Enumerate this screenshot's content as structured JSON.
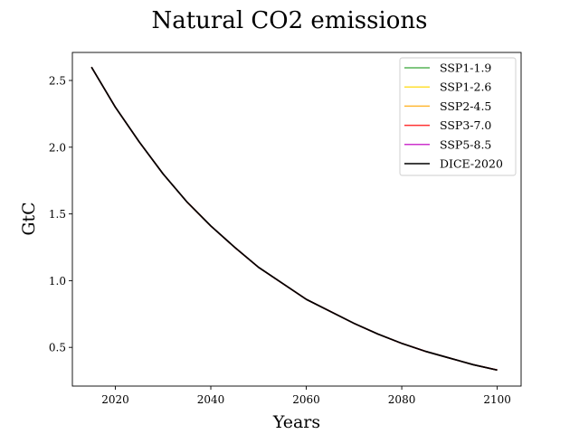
{
  "chart_data": {
    "type": "line",
    "title": "Natural CO2 emissions",
    "xlabel": "Years",
    "ylabel": "GtC",
    "xlim": [
      2011,
      2105
    ],
    "ylim": [
      0.21,
      2.71
    ],
    "x_ticks": [
      2020,
      2040,
      2060,
      2080,
      2100
    ],
    "y_ticks": [
      0.5,
      1.0,
      1.5,
      2.0,
      2.5
    ],
    "x_tick_labels": [
      "2020",
      "2040",
      "2060",
      "2080",
      "2100"
    ],
    "y_tick_labels": [
      "0.5",
      "1.0",
      "1.5",
      "2.0",
      "2.5"
    ],
    "grid": false,
    "legend_position": "top-right",
    "x": [
      2015,
      2020,
      2025,
      2030,
      2035,
      2040,
      2045,
      2050,
      2055,
      2060,
      2065,
      2070,
      2075,
      2080,
      2085,
      2090,
      2095,
      2100
    ],
    "series": [
      {
        "name": "SSP1-1.9",
        "color": "#2ca02c",
        "values": [
          2.6,
          2.3,
          2.04,
          1.8,
          1.59,
          1.41,
          1.25,
          1.1,
          0.98,
          0.86,
          0.77,
          0.68,
          0.6,
          0.53,
          0.47,
          0.42,
          0.37,
          0.33
        ]
      },
      {
        "name": "SSP1-2.6",
        "color": "#ffd700",
        "values": [
          2.6,
          2.3,
          2.04,
          1.8,
          1.59,
          1.41,
          1.25,
          1.1,
          0.98,
          0.86,
          0.77,
          0.68,
          0.6,
          0.53,
          0.47,
          0.42,
          0.37,
          0.33
        ]
      },
      {
        "name": "SSP2-4.5",
        "color": "#ffa500",
        "values": [
          2.6,
          2.3,
          2.04,
          1.8,
          1.59,
          1.41,
          1.25,
          1.1,
          0.98,
          0.86,
          0.77,
          0.68,
          0.6,
          0.53,
          0.47,
          0.42,
          0.37,
          0.33
        ]
      },
      {
        "name": "SSP3-7.0",
        "color": "#ff0000",
        "values": [
          2.6,
          2.3,
          2.04,
          1.8,
          1.59,
          1.41,
          1.25,
          1.1,
          0.98,
          0.86,
          0.77,
          0.68,
          0.6,
          0.53,
          0.47,
          0.42,
          0.37,
          0.33
        ]
      },
      {
        "name": "SSP5-8.5",
        "color": "#bf00bf",
        "values": [
          2.6,
          2.3,
          2.04,
          1.8,
          1.59,
          1.41,
          1.25,
          1.1,
          0.98,
          0.86,
          0.77,
          0.68,
          0.6,
          0.53,
          0.47,
          0.42,
          0.37,
          0.33
        ]
      },
      {
        "name": "DICE-2020",
        "color": "#000000",
        "values": [
          2.6,
          2.3,
          2.04,
          1.8,
          1.59,
          1.41,
          1.25,
          1.1,
          0.98,
          0.86,
          0.77,
          0.68,
          0.6,
          0.53,
          0.47,
          0.42,
          0.37,
          0.33
        ]
      }
    ]
  }
}
